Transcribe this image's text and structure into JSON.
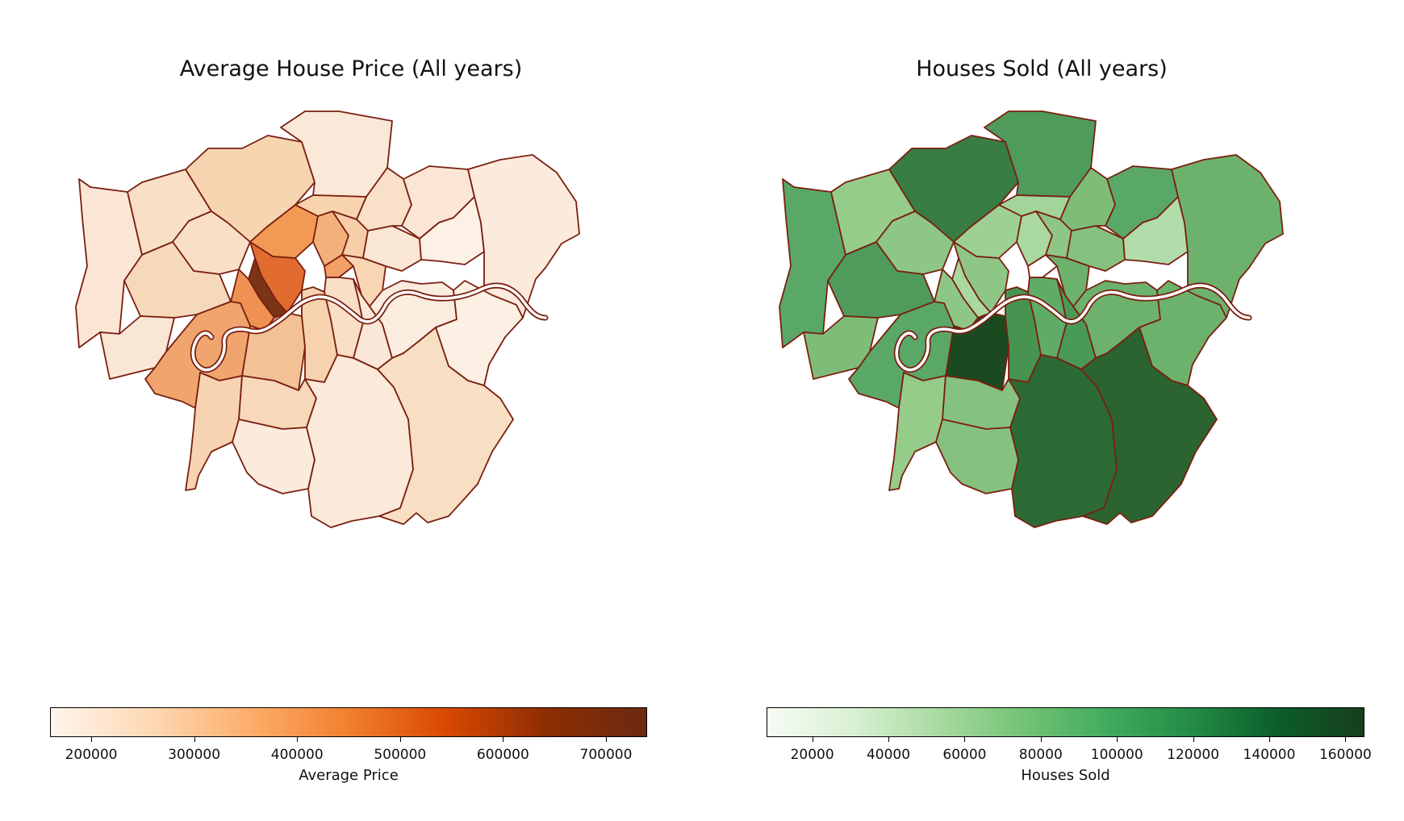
{
  "maps": [
    {
      "title": "Average House Price (All years)",
      "colorbar_label": "Average Price",
      "ticks": [
        "200000",
        "300000",
        "400000",
        "500000",
        "600000",
        "700000"
      ],
      "tick_values": [
        200000,
        300000,
        400000,
        500000,
        600000,
        700000
      ],
      "range": [
        160000,
        740000
      ],
      "colormap": [
        "#fff5eb",
        "#fdd9b5",
        "#fdae6b",
        "#f27f2e",
        "#d84801",
        "#8c2d04",
        "#6b2a10"
      ]
    },
    {
      "title": "Houses Sold (All years)",
      "colorbar_label": "Houses Sold",
      "ticks": [
        "20000",
        "40000",
        "60000",
        "80000",
        "100000",
        "120000",
        "140000",
        "160000"
      ],
      "tick_values": [
        20000,
        40000,
        60000,
        80000,
        100000,
        120000,
        140000,
        160000
      ],
      "range": [
        8000,
        165000
      ],
      "colormap": [
        "#f7fcf5",
        "#d9f0d3",
        "#a8dba0",
        "#73c476",
        "#41ab5d",
        "#238b45",
        "#0b5d2a",
        "#173f1c"
      ]
    }
  ],
  "chart_data": [
    {
      "type": "choropleth",
      "title": "Average House Price (All years)",
      "legend_label": "Average Price",
      "scale_range": [
        160000,
        740000
      ],
      "colors": {
        "border": "#7a1f10",
        "low": "#fff5eb",
        "high": "#6b2a10"
      }
    },
    {
      "type": "choropleth",
      "title": "Houses Sold (All years)",
      "legend_label": "Houses Sold",
      "scale_range": [
        8000,
        165000
      ],
      "colors": {
        "border": "#7a1f10",
        "low": "#f7fcf5",
        "high": "#173f1c"
      }
    }
  ]
}
